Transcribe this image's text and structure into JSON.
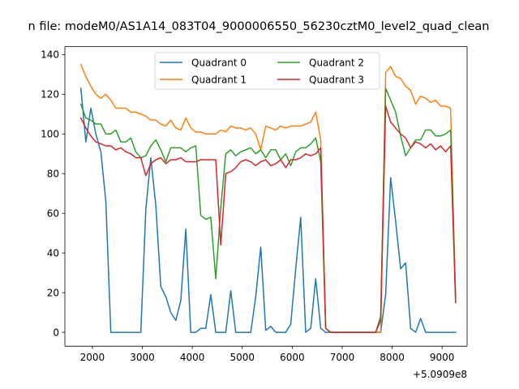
{
  "chart_data": {
    "type": "line",
    "title": "n file: modeM0/AS1A14_083T04_9000006550_56230cztM0_level2_quad_clean",
    "xlabel": "",
    "ylabel": "",
    "x_offset_label": "+5.0909e8",
    "xlim": [
      1450,
      9500
    ],
    "ylim": [
      -7,
      144
    ],
    "x_ticks": [
      2000,
      3000,
      4000,
      5000,
      6000,
      7000,
      8000,
      9000
    ],
    "y_ticks": [
      0,
      20,
      40,
      60,
      80,
      100,
      120,
      140
    ],
    "legend": {
      "position": "upper-center",
      "columns": 2
    },
    "series": [
      {
        "name": "Quadrant 0",
        "color": "#1f77b4",
        "x": [
          1770,
          1870,
          1970,
          2070,
          2170,
          2270,
          2370,
          2470,
          2570,
          2670,
          2770,
          2870,
          2970,
          3070,
          3170,
          3270,
          3370,
          3470,
          3570,
          3670,
          3770,
          3870,
          3970,
          4070,
          4170,
          4270,
          4370,
          4470,
          4570,
          4670,
          4770,
          4870,
          4970,
          5070,
          5170,
          5270,
          5370,
          5470,
          5570,
          5670,
          5770,
          5870,
          5970,
          6070,
          6170,
          6270,
          6370,
          6470,
          6570,
          6670,
          6770,
          6870,
          6970,
          7070,
          7170,
          7270,
          7370,
          7470,
          7570,
          7670,
          7770,
          7870,
          7970,
          8070,
          8170,
          8270,
          8370,
          8470,
          8570,
          8670,
          8770,
          8870,
          8970,
          9070,
          9170,
          9270
        ],
        "y": [
          123,
          96,
          113,
          100,
          91,
          66,
          0,
          0,
          0,
          0,
          0,
          0,
          0,
          62,
          88,
          64,
          23,
          18,
          10,
          6,
          16,
          52,
          0,
          0,
          2,
          2,
          19,
          0,
          0,
          0,
          21,
          0,
          0,
          0,
          0,
          18,
          43,
          1,
          3,
          0,
          0,
          0,
          4,
          32,
          58,
          0,
          2,
          27,
          2,
          0,
          0,
          0,
          0,
          0,
          0,
          0,
          0,
          0,
          0,
          0,
          0,
          19,
          78,
          56,
          32,
          35,
          2,
          0,
          7,
          0,
          0,
          0,
          0,
          0,
          0,
          0
        ]
      },
      {
        "name": "Quadrant 1",
        "color": "#ff7f0e",
        "x": [
          1770,
          1870,
          1970,
          2070,
          2170,
          2270,
          2370,
          2470,
          2570,
          2670,
          2770,
          2870,
          2970,
          3070,
          3170,
          3270,
          3370,
          3470,
          3570,
          3670,
          3770,
          3870,
          3970,
          4070,
          4170,
          4270,
          4370,
          4470,
          4570,
          4670,
          4770,
          4870,
          4970,
          5070,
          5170,
          5270,
          5370,
          5470,
          5570,
          5670,
          5770,
          5870,
          5970,
          6070,
          6170,
          6270,
          6370,
          6470,
          6570,
          6670,
          6770,
          6870,
          6970,
          7070,
          7170,
          7270,
          7370,
          7470,
          7570,
          7670,
          7770,
          7870,
          7970,
          8070,
          8170,
          8270,
          8370,
          8470,
          8570,
          8670,
          8770,
          8870,
          8970,
          9070,
          9170,
          9270
        ],
        "y": [
          135,
          129,
          124,
          120,
          118,
          120,
          117,
          113,
          113,
          113,
          111,
          111,
          110,
          109,
          107,
          107,
          105,
          104,
          107,
          103,
          102,
          108,
          103,
          101,
          101,
          100,
          100,
          100,
          102,
          101,
          104,
          103,
          103,
          102,
          103,
          100,
          92,
          104,
          103,
          102,
          104,
          103,
          104,
          104,
          104,
          105,
          106,
          111,
          97,
          2,
          0,
          0,
          0,
          0,
          0,
          0,
          0,
          0,
          0,
          0,
          0,
          131,
          134,
          129,
          128,
          124,
          122,
          115,
          119,
          118,
          116,
          117,
          114,
          114,
          113,
          15
        ]
      },
      {
        "name": "Quadrant 2",
        "color": "#2ca02c",
        "x": [
          1770,
          1870,
          1970,
          2070,
          2170,
          2270,
          2370,
          2470,
          2570,
          2670,
          2770,
          2870,
          2970,
          3070,
          3170,
          3270,
          3370,
          3470,
          3570,
          3670,
          3770,
          3870,
          3970,
          4070,
          4170,
          4270,
          4370,
          4470,
          4570,
          4670,
          4770,
          4870,
          4970,
          5070,
          5170,
          5270,
          5370,
          5470,
          5570,
          5670,
          5770,
          5870,
          5970,
          6070,
          6170,
          6270,
          6370,
          6470,
          6570,
          6670,
          6770,
          6870,
          6970,
          7070,
          7170,
          7270,
          7370,
          7470,
          7570,
          7670,
          7770,
          7870,
          7970,
          8070,
          8170,
          8270,
          8370,
          8470,
          8570,
          8670,
          8770,
          8870,
          8970,
          9070,
          9170,
          9270
        ],
        "y": [
          115,
          108,
          107,
          105,
          105,
          100,
          100,
          102,
          96,
          96,
          98,
          91,
          88,
          89,
          94,
          97,
          92,
          86,
          93,
          93,
          93,
          91,
          93,
          94,
          59,
          57,
          58,
          27,
          63,
          90,
          92,
          89,
          91,
          92,
          93,
          90,
          92,
          88,
          92,
          92,
          87,
          90,
          84,
          91,
          93,
          93,
          95,
          98,
          86,
          2,
          0,
          0,
          0,
          0,
          0,
          0,
          0,
          0,
          0,
          0,
          8,
          123,
          117,
          111,
          99,
          89,
          93,
          97,
          97,
          102,
          102,
          99,
          99,
          100,
          102,
          18
        ]
      },
      {
        "name": "Quadrant 3",
        "color": "#d62728",
        "x": [
          1770,
          1870,
          1970,
          2070,
          2170,
          2270,
          2370,
          2470,
          2570,
          2670,
          2770,
          2870,
          2970,
          3070,
          3170,
          3270,
          3370,
          3470,
          3570,
          3670,
          3770,
          3870,
          3970,
          4070,
          4170,
          4270,
          4370,
          4470,
          4570,
          4670,
          4770,
          4870,
          4970,
          5070,
          5170,
          5270,
          5370,
          5470,
          5570,
          5670,
          5770,
          5870,
          5970,
          6070,
          6170,
          6270,
          6370,
          6470,
          6570,
          6670,
          6770,
          6870,
          6970,
          7070,
          7170,
          7270,
          7370,
          7470,
          7570,
          7670,
          7770,
          7870,
          7970,
          8070,
          8170,
          8270,
          8370,
          8470,
          8570,
          8670,
          8770,
          8870,
          8970,
          9070,
          9170,
          9270
        ],
        "y": [
          108,
          103,
          99,
          96,
          95,
          94,
          94,
          92,
          93,
          91,
          90,
          88,
          88,
          79,
          85,
          87,
          88,
          85,
          87,
          87,
          88,
          86,
          86,
          86,
          87,
          87,
          87,
          87,
          44,
          80,
          81,
          83,
          86,
          87,
          86,
          84,
          86,
          87,
          84,
          85,
          87,
          83,
          87,
          87,
          88,
          90,
          89,
          90,
          93,
          2,
          0,
          0,
          0,
          0,
          0,
          0,
          0,
          0,
          0,
          0,
          6,
          114,
          106,
          103,
          100,
          98,
          93,
          96,
          95,
          93,
          95,
          92,
          94,
          91,
          94,
          15
        ]
      }
    ]
  }
}
